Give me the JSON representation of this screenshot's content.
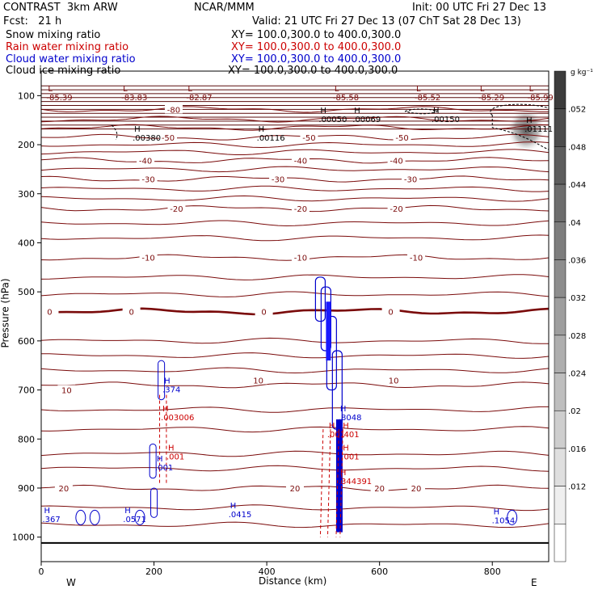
{
  "header": {
    "model": "CONTRAST",
    "grid": "3km ARW",
    "center": "NCAR/MMM",
    "init": "Init: 00 UTC Fri 27 Dec 13",
    "fcst_label": "Fcst:",
    "fcst_value": "21 h",
    "valid": "Valid: 21 UTC Fri 27 Dec 13 (07 ChT Sat 28 Dec 13)"
  },
  "fields": [
    {
      "name": "Snow mixing ratio",
      "color": "#000000",
      "xy": "XY= 100.0,300.0 to 400.0,300.0"
    },
    {
      "name": "Rain water mixing ratio",
      "color": "#cc0000",
      "xy": "XY= 100.0,300.0 to 400.0,300.0"
    },
    {
      "name": "Cloud water mixing ratio",
      "color": "#0000cc",
      "xy": "XY= 100.0,300.0 to 400.0,300.0"
    },
    {
      "name": "Cloud ice mixing ratio",
      "color": "#000000",
      "xy": "XY= 100.0,300.0 to 400.0,300.0"
    }
  ],
  "chart_data": {
    "type": "cross-section",
    "xlabel": "Distance (km)",
    "ylabel": "Pressure (hPa)",
    "xlim": [
      0,
      900
    ],
    "ylim": [
      1050,
      50
    ],
    "x_ticks": [
      "0",
      "200",
      "400",
      "600",
      "800"
    ],
    "y_ticks": [
      "100",
      "200",
      "300",
      "400",
      "500",
      "600",
      "700",
      "800",
      "900",
      "1000"
    ],
    "left_end_label": "W",
    "right_end_label": "E",
    "colorbar": {
      "unit": "g kg⁻¹",
      "ticks": [
        ".052",
        ".048",
        ".044",
        ".04",
        ".036",
        ".032",
        ".028",
        ".024",
        ".02",
        ".016",
        ".012"
      ]
    },
    "temperature_isotherms": [
      {
        "value": -80,
        "p": 128
      },
      {
        "value": -70,
        "p": 148
      },
      {
        "value": -60,
        "p": 165
      },
      {
        "value": -50,
        "p": 185
      },
      {
        "value": -40,
        "p": 232
      },
      {
        "value": -30,
        "p": 270
      },
      {
        "value": -20,
        "p": 330
      },
      {
        "value": -10,
        "p": 430
      },
      {
        "value": 0,
        "p": 540
      },
      {
        "value": 10,
        "p": 690
      },
      {
        "value": 20,
        "p": 900
      }
    ],
    "contour_labels": [
      {
        "text": "-80",
        "x": 235,
        "p": 128
      },
      {
        "text": "-50",
        "x": 225,
        "p": 185
      },
      {
        "text": "-50",
        "x": 475,
        "p": 185
      },
      {
        "text": "-50",
        "x": 640,
        "p": 185
      },
      {
        "text": "-40",
        "x": 185,
        "p": 232
      },
      {
        "text": "-40",
        "x": 460,
        "p": 232
      },
      {
        "text": "-40",
        "x": 630,
        "p": 232
      },
      {
        "text": "-30",
        "x": 190,
        "p": 270
      },
      {
        "text": "-30",
        "x": 420,
        "p": 270
      },
      {
        "text": "-30",
        "x": 655,
        "p": 270
      },
      {
        "text": "-20",
        "x": 240,
        "p": 330
      },
      {
        "text": "-20",
        "x": 460,
        "p": 330
      },
      {
        "text": "-20",
        "x": 630,
        "p": 330
      },
      {
        "text": "-10",
        "x": 190,
        "p": 430
      },
      {
        "text": "-10",
        "x": 460,
        "p": 430
      },
      {
        "text": "-10",
        "x": 665,
        "p": 430
      },
      {
        "text": "0",
        "x": 15,
        "p": 540
      },
      {
        "text": "0",
        "x": 160,
        "p": 540
      },
      {
        "text": "0",
        "x": 395,
        "p": 540
      },
      {
        "text": "0",
        "x": 620,
        "p": 540
      },
      {
        "text": "10",
        "x": 45,
        "p": 700
      },
      {
        "text": "10",
        "x": 385,
        "p": 680
      },
      {
        "text": "10",
        "x": 625,
        "p": 680
      },
      {
        "text": "20",
        "x": 40,
        "p": 900
      },
      {
        "text": "20",
        "x": 450,
        "p": 900
      },
      {
        "text": "20",
        "x": 600,
        "p": 900
      },
      {
        "text": "20",
        "x": 665,
        "p": 900
      }
    ],
    "temperature_extrema": [
      {
        "label": "L",
        "value": "-85.39",
        "x": 12,
        "p": 98
      },
      {
        "label": "L",
        "value": "-83.83",
        "x": 145,
        "p": 98
      },
      {
        "label": "L",
        "value": "-82.87",
        "x": 260,
        "p": 98
      },
      {
        "label": "L",
        "value": "-85.58",
        "x": 520,
        "p": 98
      },
      {
        "label": "L",
        "value": "-85.52",
        "x": 665,
        "p": 98
      },
      {
        "label": "L",
        "value": "-85.29",
        "x": 778,
        "p": 98
      },
      {
        "label": "L",
        "value": "-85.99",
        "x": 865,
        "p": 98
      }
    ],
    "ice_extrema": [
      {
        "label": "H",
        "value": ".00050",
        "x": 495,
        "p": 142
      },
      {
        "label": "H",
        "value": ".00069",
        "x": 555,
        "p": 142
      },
      {
        "label": "H",
        "value": ".00150",
        "x": 695,
        "p": 142
      },
      {
        "label": "H",
        "value": ".00380",
        "x": 165,
        "p": 180
      },
      {
        "label": "H",
        "value": ".00116",
        "x": 385,
        "p": 180
      },
      {
        "label": "H",
        "value": ".01111",
        "x": 860,
        "p": 162
      }
    ],
    "cloud_water_extrema": [
      {
        "label": "H",
        "value": ".374",
        "x": 218,
        "p": 693
      },
      {
        "label": "H",
        "value": ".8048",
        "x": 530,
        "p": 750
      },
      {
        "label": "H",
        "value": ".001",
        "x": 205,
        "p": 852
      },
      {
        "label": "H",
        "value": ".367",
        "x": 5,
        "p": 958
      },
      {
        "label": "H",
        "value": ".0571",
        "x": 148,
        "p": 958
      },
      {
        "label": "H",
        "value": ".0415",
        "x": 335,
        "p": 948
      },
      {
        "label": "H",
        "value": ".1054",
        "x": 802,
        "p": 960
      }
    ],
    "rain_extrema": [
      {
        "label": "H",
        "value": ".003006",
        "x": 215,
        "p": 750
      },
      {
        "label": "H",
        "value": ".001",
        "x": 225,
        "p": 830
      },
      {
        "label": "H",
        "value": ".001",
        "x": 510,
        "p": 785
      },
      {
        "label": "H",
        "value": ".401",
        "x": 535,
        "p": 785
      },
      {
        "label": "H",
        "value": ".001",
        "x": 535,
        "p": 830
      },
      {
        "label": "H",
        "value": ".344391",
        "x": 530,
        "p": 880
      }
    ]
  }
}
